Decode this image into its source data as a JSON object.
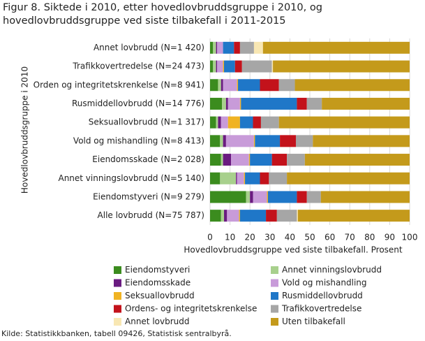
{
  "chart_data": {
    "type": "stacked-barh",
    "title": "Figur 8. Siktede i 2010, etter hovedlovbruddsgruppe i 2010, og hovedlovbruddsgruppe ved siste tilbakefall i 2011-2015",
    "ylabel": "Hovedlovbruddsgruppe i 2010",
    "xlabel": "Hovedlovbruddsgruppe  ved siste tilbakefall.  Prosent",
    "source": "Kilde: Statistikkbanken, tabell 09426, Statistisk sentralbyrå.",
    "categories": [
      "Annet lovbrudd (N=1 420)",
      "Trafikkovertredelse  (N=24 473)",
      "Orden og integritetskrenkelse (N=8 941)",
      "Rusmiddellovbrudd (N=14 776)",
      "Seksuallovbrudd (N=1 317)",
      "Vold og mishandling (N=8 413)",
      "Eiendomsskade (N=2 028)",
      "Annet vinningslovbrudd (N=5 140)",
      "Eiendomstyveri (N=9 279)",
      "Alle lovbrudd (N=75 787)"
    ],
    "series": [
      {
        "name": "Eiendomstyveri",
        "color": "#3b8c1e",
        "values": [
          1.5,
          1.5,
          4,
          6,
          3,
          5,
          5.5,
          5,
          18,
          5.5
        ]
      },
      {
        "name": "Annet vinningslovbrudd",
        "color": "#a8d08d",
        "values": [
          1.5,
          1.5,
          1.5,
          2,
          1,
          1.5,
          1,
          8,
          2,
          1.5
        ]
      },
      {
        "name": "Eiendomsskade",
        "color": "#6a1b80",
        "values": [
          0.5,
          0.5,
          1,
          1,
          1.5,
          1.5,
          4,
          0.5,
          1.5,
          1.5
        ]
      },
      {
        "name": "Vold og mishandling",
        "color": "#c89bd9",
        "values": [
          3,
          3,
          7,
          6,
          3.5,
          14,
          9,
          3.5,
          7,
          6
        ]
      },
      {
        "name": "Seksuallovbrudd",
        "color": "#f0b323",
        "values": [
          0,
          0.5,
          0.5,
          0.5,
          6,
          0.5,
          0.5,
          0.5,
          0.5,
          0.5
        ]
      },
      {
        "name": "Rusmiddellovbrudd",
        "color": "#1f77c8",
        "values": [
          5.5,
          5.5,
          11,
          28,
          6.5,
          12.5,
          11,
          7.5,
          14.5,
          13
        ]
      },
      {
        "name": "Ordens- og integritetskrenkelse",
        "color": "#c3121b",
        "values": [
          3,
          3.5,
          9.5,
          5,
          4,
          8,
          7.5,
          4.5,
          5,
          5.5
        ]
      },
      {
        "name": "Trafikkovertredelse",
        "color": "#a6a6a6",
        "values": [
          7,
          15,
          8,
          7.5,
          9,
          8.5,
          9,
          9,
          7,
          10
        ]
      },
      {
        "name": "Annet lovbrudd",
        "color": "#f8e7b3",
        "values": [
          4.5,
          0.5,
          0,
          0,
          0,
          0,
          0,
          0,
          0,
          0.5
        ]
      },
      {
        "name": "Uten tilbakefall",
        "color": "#c49a1b",
        "values": [
          73.5,
          68.5,
          57.5,
          44,
          65.5,
          48.5,
          52.5,
          61.5,
          44.5,
          56
        ]
      }
    ],
    "xlim": [
      0,
      100
    ],
    "xticks": [
      0,
      10,
      20,
      30,
      40,
      50,
      60,
      70,
      80,
      90,
      100
    ],
    "grid": true
  }
}
